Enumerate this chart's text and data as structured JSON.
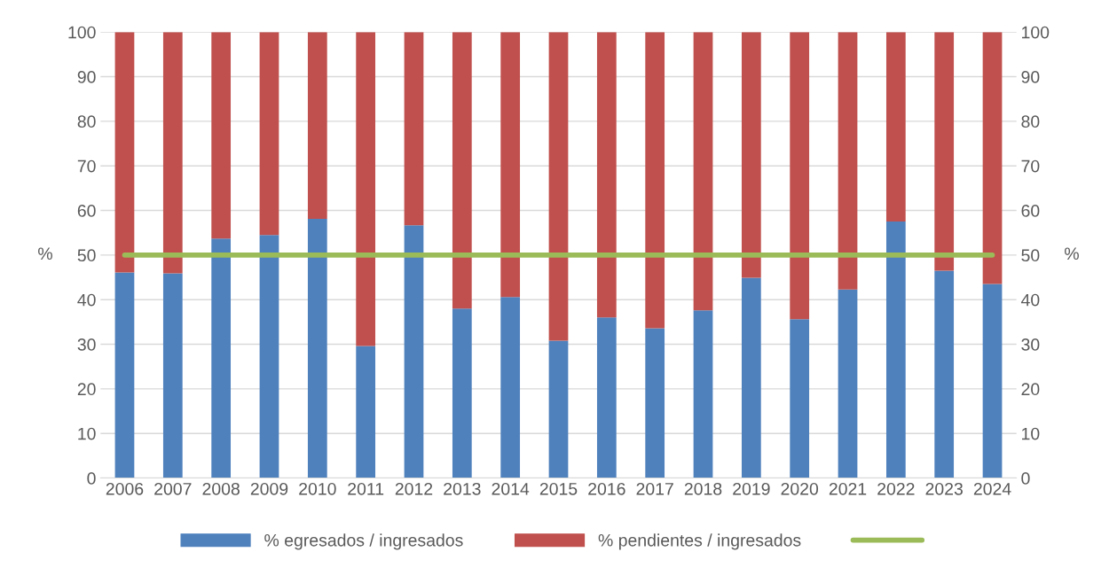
{
  "chart_data": {
    "type": "bar",
    "stacked": true,
    "ylabel": "%",
    "y2label": "%",
    "categories": [
      "2006",
      "2007",
      "2008",
      "2009",
      "2010",
      "2011",
      "2012",
      "2013",
      "2014",
      "2015",
      "2016",
      "2017",
      "2018",
      "2019",
      "2020",
      "2021",
      "2022",
      "2023",
      "2024"
    ],
    "series": [
      {
        "name": "% egresados / ingresados",
        "color": "#4f81bd",
        "values": [
          46.1,
          45.9,
          53.7,
          54.5,
          58.1,
          29.6,
          56.7,
          38.0,
          40.6,
          30.8,
          36.0,
          33.6,
          37.6,
          44.9,
          35.6,
          42.3,
          57.5,
          46.5,
          43.5
        ]
      },
      {
        "name": "% pendientes / ingresados",
        "color": "#c0504d",
        "values": [
          53.9,
          54.1,
          46.3,
          45.5,
          41.9,
          70.4,
          43.3,
          62.0,
          59.4,
          69.2,
          64.0,
          66.4,
          62.4,
          55.1,
          64.4,
          57.7,
          42.5,
          53.5,
          56.5
        ]
      },
      {
        "type": "line",
        "color": "#9bbb59",
        "values": [
          50,
          50,
          50,
          50,
          50,
          50,
          50,
          50,
          50,
          50,
          50,
          50,
          50,
          50,
          50,
          50,
          50,
          50,
          50
        ]
      }
    ],
    "ylim": [
      0,
      100
    ],
    "yticks": [
      0,
      10,
      20,
      30,
      40,
      50,
      60,
      70,
      80,
      90,
      100
    ],
    "y2lim": [
      0,
      100
    ],
    "y2ticks": [
      0,
      10,
      20,
      30,
      40,
      50,
      60,
      70,
      80,
      90,
      100
    ],
    "grid": "y",
    "legend": "bottom"
  }
}
